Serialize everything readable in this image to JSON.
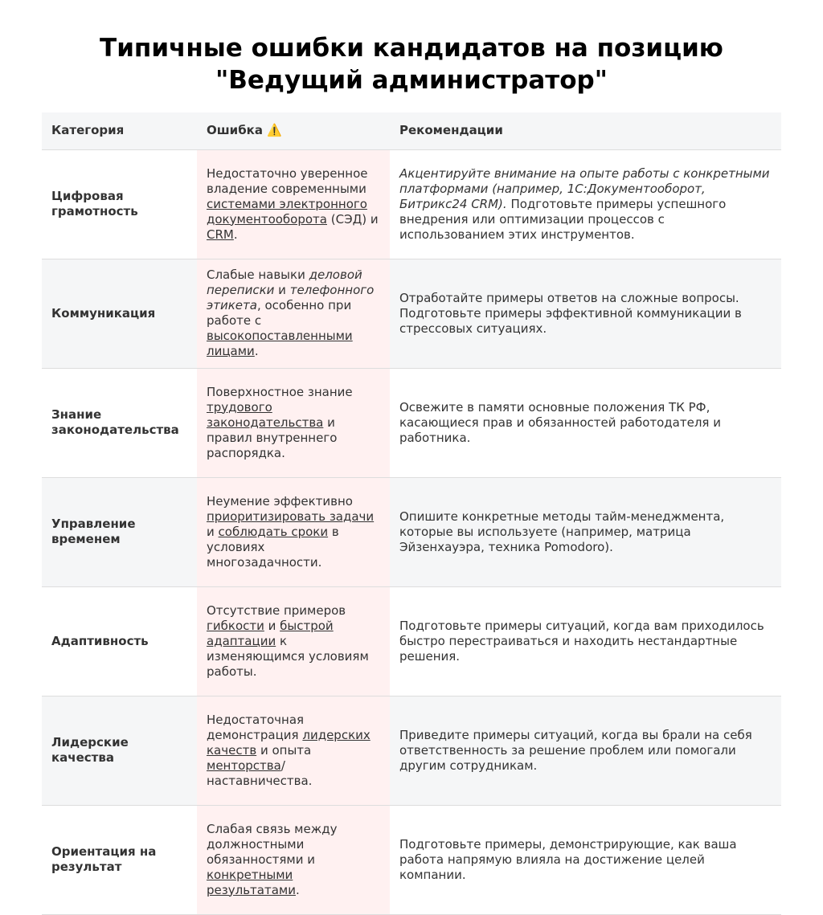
{
  "title": {
    "line1": "Типичные ошибки кандидатов на позицию",
    "line2": "\"Ведущий администратор\""
  },
  "table": {
    "header": [
      "Категория",
      "Ошибка ⚠️",
      "Рекомендации"
    ],
    "rows": [
      [
        "Цифровая грамотность",
        [
          "Недостаточно уверенное владение современными ",
          {
            "text": "системами электронного документооборота",
            "style": "underline"
          },
          " (СЭД) и ",
          {
            "text": "CRM",
            "style": "underline"
          },
          "."
        ],
        [
          {
            "text": "Акцентируйте внимание на опыте работы с конкретными платформами (например, 1С:Документооборот, Битрикс24 CRM).",
            "style": "italic"
          },
          " Подготовьте примеры успешного внедрения или оптимизации процессов с использованием этих инструментов."
        ]
      ],
      [
        "Коммуникация",
        [
          "Слабые навыки ",
          {
            "text": "деловой переписки",
            "style": "italic"
          },
          " и ",
          {
            "text": "телефонного этикета",
            "style": "italic"
          },
          ", особенно при работе с ",
          {
            "text": "высокопоставленными лицами",
            "style": "underline"
          },
          "."
        ],
        [
          "Отработайте примеры ответов на сложные вопросы. Подготовьте примеры эффективной коммуникации в стрессовых ситуациях."
        ]
      ],
      [
        "Знание законодательства",
        [
          "Поверхностное знание ",
          {
            "text": "трудового законодательства",
            "style": "underline"
          },
          " и правил внутреннего распорядка."
        ],
        [
          "Освежите в памяти основные положения ТК РФ, касающиеся прав и обязанностей работодателя и работника."
        ]
      ],
      [
        "Управление временем",
        [
          "Неумение эффективно ",
          {
            "text": "приоритизировать задачи",
            "style": "underline"
          },
          " и ",
          {
            "text": "соблюдать сроки",
            "style": "underline"
          },
          " в условиях многозадачности."
        ],
        [
          "Опишите конкретные методы тайм-менеджмента, которые вы используете (например, матрица Эйзенхауэра, техника Pomodoro)."
        ]
      ],
      [
        "Адаптивность",
        [
          "Отсутствие примеров ",
          {
            "text": "гибкости",
            "style": "underline"
          },
          " и ",
          {
            "text": "быстрой адаптации",
            "style": "underline"
          },
          " к изменяющимся условиям работы."
        ],
        [
          "Подготовьте примеры ситуаций, когда вам приходилось быстро перестраиваться и находить нестандартные решения."
        ]
      ],
      [
        "Лидерские качества",
        [
          "Недостаточная демонстрация ",
          {
            "text": "лидерских качеств",
            "style": "underline"
          },
          " и опыта ",
          {
            "text": "менторства",
            "style": "underline"
          },
          "/наставничества."
        ],
        [
          "Приведите примеры ситуаций, когда вы брали на себя ответственность за решение проблем или помогали другим сотрудникам."
        ]
      ],
      [
        "Ориентация на результат",
        [
          "Слабая связь между должностными обязанностями и ",
          {
            "text": "конкретными результатами",
            "style": "underline"
          },
          "."
        ],
        [
          "Подготовьте примеры, демонстрирующие, как ваша работа напрямую влияла на достижение целей компании."
        ]
      ]
    ]
  }
}
